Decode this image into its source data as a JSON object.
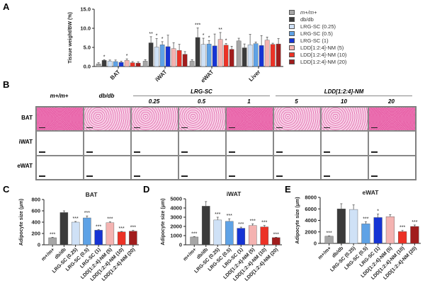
{
  "panels": {
    "a": "A",
    "b": "B",
    "c": "C",
    "d": "D",
    "e": "E"
  },
  "groups": [
    {
      "label": "m+/m+",
      "color": "#a6a6a6"
    },
    {
      "label": "db/db",
      "color": "#3b3b3b"
    },
    {
      "label": "LRG-SC (0.25)",
      "color": "#cfe1f6"
    },
    {
      "label": "LRG-SC (0.5)",
      "color": "#5ea2e6"
    },
    {
      "label": "LRG-SC (1)",
      "color": "#1634d4"
    },
    {
      "label": "LDD[1:2:4]-NM (5)",
      "color": "#f4b3b1"
    },
    {
      "label": "LDD[1:2:4]-NM (10)",
      "color": "#ec3226"
    },
    {
      "label": "LDD[1:2:4]-NM (20)",
      "color": "#a11d1d"
    }
  ],
  "histology": {
    "columns": [
      "m+/m+",
      "db/db",
      "0.25",
      "0.5",
      "1",
      "5",
      "10",
      "20"
    ],
    "group_headers": [
      "LRG-SC",
      "LDD[1:2:4]-NM"
    ],
    "rows": [
      "BAT",
      "iWAT",
      "eWAT"
    ]
  },
  "chart_data": [
    {
      "type": "bar",
      "id": "A",
      "title": "",
      "ylabel": "Tissue weight/BW (%)",
      "ylim": [
        0,
        15
      ],
      "yticks": [
        "0.0",
        "5.0",
        "10.0",
        "15.0"
      ],
      "ytickvals": [
        0,
        5,
        10,
        15
      ],
      "categories": [
        "BAT",
        "iWAT",
        "eWAT",
        "Liver"
      ],
      "series": [
        {
          "name": "m+/m+",
          "values": [
            0.7,
            1.4,
            1.4,
            6.7
          ],
          "err": [
            0.3,
            0.4,
            0.4,
            0.7
          ],
          "sig": [
            "",
            "",
            "",
            ""
          ]
        },
        {
          "name": "db/db",
          "values": [
            1.6,
            6.2,
            7.6,
            4.9
          ],
          "err": [
            0.2,
            1.6,
            2.5,
            1.0
          ],
          "sig": [
            "*",
            "**",
            "***",
            ""
          ]
        },
        {
          "name": "LRG-SC (0.25)",
          "values": [
            1.4,
            5.1,
            5.8,
            5.7
          ],
          "err": [
            0.3,
            2.2,
            1.6,
            2.7
          ],
          "sig": [
            "",
            "*",
            "*",
            ""
          ]
        },
        {
          "name": "LRG-SC (0.5)",
          "values": [
            1.3,
            5.7,
            5.9,
            6.0
          ],
          "err": [
            0.4,
            0.8,
            0.9,
            0.4
          ],
          "sig": [
            "",
            "*",
            "*",
            ""
          ]
        },
        {
          "name": "LRG-SC (1)",
          "values": [
            1.1,
            5.2,
            5.4,
            5.5
          ],
          "err": [
            0.3,
            3.0,
            3.1,
            2.6
          ],
          "sig": [
            "",
            "",
            "",
            ""
          ]
        },
        {
          "name": "LDD[1:2:4]-NM (5)",
          "values": [
            1.6,
            4.7,
            7.1,
            6.9
          ],
          "err": [
            0.4,
            1.5,
            1.8,
            0.8
          ],
          "sig": [
            "*",
            "",
            "**",
            ""
          ]
        },
        {
          "name": "LDD[1:2:4]-NM (10)",
          "values": [
            1.0,
            4.2,
            5.6,
            5.8
          ],
          "err": [
            0.3,
            1.6,
            0.4,
            0.3
          ],
          "sig": [
            "",
            "",
            "*",
            ""
          ]
        },
        {
          "name": "LDD[1:2:4]-NM (20)",
          "values": [
            0.9,
            3.2,
            4.5,
            5.9
          ],
          "err": [
            0.3,
            0.7,
            0.8,
            1.4
          ],
          "sig": [
            "",
            "",
            "",
            ""
          ]
        }
      ]
    },
    {
      "type": "bar",
      "id": "C",
      "title": "BAT",
      "ylabel": "Adipocyte size (μm)",
      "ylim": [
        0,
        800
      ],
      "yticks": [
        "0",
        "200",
        "400",
        "600",
        "800"
      ],
      "ytickvals": [
        0,
        200,
        400,
        600,
        800
      ],
      "categories": [
        "m+/m+",
        "db/db",
        "LRG-SC (0.25)",
        "LRG-SC (0.5)",
        "LRG-SC (1)",
        "LDD[1:2:4]-NM (5)",
        "LDD[1:2:4]-NM (10)",
        "LDD[1:2:4]-NM (20)"
      ],
      "values": [
        125,
        570,
        400,
        475,
        258,
        390,
        228,
        240
      ],
      "err": [
        8,
        30,
        12,
        35,
        10,
        15,
        8,
        15
      ],
      "sig": [
        "***",
        "",
        "***",
        "***",
        "***",
        "***",
        "***",
        "***"
      ]
    },
    {
      "type": "bar",
      "id": "D",
      "title": "iWAT",
      "ylabel": "Adipocyte size (μm)",
      "ylim": [
        0,
        5000
      ],
      "yticks": [
        "0",
        "1000",
        "2000",
        "3000",
        "4000",
        "5000"
      ],
      "ytickvals": [
        0,
        1000,
        2000,
        3000,
        4000,
        5000
      ],
      "categories": [
        "m+/m+",
        "db/db",
        "LRG-SC (0.25)",
        "LRG-SC (0.5)",
        "LRG-SC (1)",
        "LDD[1:2:4]-NM (5)",
        "LDD[1:2:4]-NM (10)",
        "LDD[1:2:4]-NM (20)"
      ],
      "values": [
        850,
        4200,
        2700,
        2550,
        1800,
        2100,
        1950,
        780
      ],
      "err": [
        50,
        500,
        300,
        280,
        120,
        180,
        150,
        40
      ],
      "sig": [
        "***",
        "",
        "***",
        "***",
        "***",
        "***",
        "***",
        "***"
      ]
    },
    {
      "type": "bar",
      "id": "E",
      "title": "eWAT",
      "ylabel": "Adipocyte size (μm)",
      "ylim": [
        0,
        8000
      ],
      "yticks": [
        "0",
        "2000",
        "4000",
        "6000",
        "8000"
      ],
      "ytickvals": [
        0,
        2000,
        4000,
        6000,
        8000
      ],
      "categories": [
        "m+/m+",
        "db/db",
        "LRG-SC (0.25)",
        "LRG-SC (0.5)",
        "LRG-SC (1)",
        "LDD[1:2:4]-NM (5)",
        "LDD[1:2:4]-NM (10)",
        "LDD[1:2:4]-NM (20)"
      ],
      "values": [
        1250,
        6000,
        5900,
        3400,
        4500,
        4650,
        2050,
        2950
      ],
      "err": [
        60,
        900,
        800,
        350,
        600,
        350,
        200,
        250
      ],
      "sig": [
        "***",
        "",
        "",
        "***",
        "*",
        "",
        "***",
        "***"
      ]
    }
  ]
}
